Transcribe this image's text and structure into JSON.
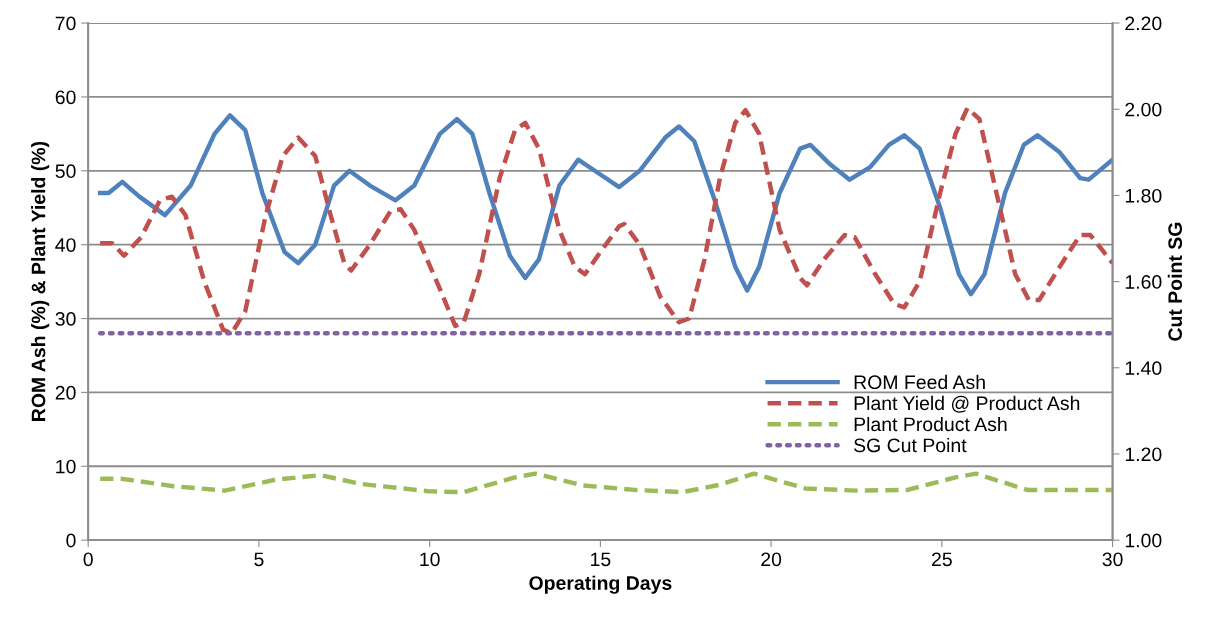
{
  "chart_data": {
    "type": "line",
    "xlabel": "Operating Days",
    "ylabel": "ROM Ash (%) & Plant Yield (%)",
    "y2label": "Cut Point SG",
    "xlim": [
      0,
      30
    ],
    "xticks": [
      0,
      5,
      10,
      15,
      20,
      25,
      30
    ],
    "ylim": [
      0,
      70
    ],
    "yticks": [
      0,
      10,
      20,
      30,
      40,
      50,
      60,
      70
    ],
    "y2lim": [
      1.0,
      2.2
    ],
    "y2ticks": [
      {
        "value": 1.0,
        "label": "1.00"
      },
      {
        "value": 1.2,
        "label": "1.20"
      },
      {
        "value": 1.4,
        "label": "1.40"
      },
      {
        "value": 1.6,
        "label": "1.60"
      },
      {
        "value": 1.8,
        "label": "1.80"
      },
      {
        "value": 2.0,
        "label": "2.00"
      },
      {
        "value": 2.2,
        "label": "2.20"
      }
    ],
    "grid": "y",
    "legend": "right",
    "marker": "none",
    "series": [
      {
        "name": "ROM Feed Ash",
        "color": "#4f81bd",
        "line_style": "solid",
        "x": [
          0.35,
          0.6,
          1.0,
          1.5,
          2.25,
          3.0,
          3.7,
          4.15,
          4.6,
          5.1,
          5.75,
          6.15,
          6.65,
          7.2,
          7.65,
          8.25,
          9.0,
          9.55,
          10.3,
          10.8,
          11.25,
          11.75,
          12.35,
          12.8,
          13.2,
          13.8,
          14.35,
          15.0,
          15.55,
          16.15,
          16.9,
          17.3,
          17.75,
          18.35,
          18.95,
          19.3,
          19.65,
          20.25,
          20.85,
          21.15,
          21.7,
          22.3,
          22.9,
          23.45,
          23.9,
          24.35,
          24.95,
          25.5,
          25.85,
          26.25,
          26.85,
          27.4,
          27.8,
          28.45,
          29.05,
          29.3,
          30.0
        ],
        "values": [
          47,
          47,
          48.5,
          46.5,
          44,
          48,
          55,
          57.5,
          55.5,
          47,
          39,
          37.5,
          40,
          48,
          50,
          48,
          46,
          48,
          55,
          57,
          55,
          47,
          38.5,
          35.5,
          38,
          48,
          51.5,
          49.5,
          47.8,
          50,
          54.5,
          56,
          54,
          46,
          37,
          33.8,
          37,
          47,
          53,
          53.5,
          51,
          48.8,
          50.5,
          53.5,
          54.8,
          53,
          45,
          36,
          33.3,
          36,
          47,
          53.5,
          54.8,
          52.5,
          49,
          48.8,
          51.5
        ]
      },
      {
        "name": "Plant Yield @ Product Ash",
        "color": "#c0504d",
        "line_style": "dashed",
        "x": [
          0.35,
          0.7,
          1.05,
          1.55,
          2.1,
          2.45,
          2.85,
          3.4,
          3.95,
          4.2,
          4.6,
          5.2,
          5.7,
          6.15,
          6.65,
          7.1,
          7.5,
          7.7,
          8.25,
          8.85,
          9.15,
          9.55,
          10.3,
          10.75,
          11.0,
          11.45,
          12.05,
          12.5,
          12.8,
          13.2,
          13.8,
          14.25,
          14.55,
          15.0,
          15.55,
          15.7,
          16.15,
          16.75,
          17.3,
          17.6,
          18.05,
          18.5,
          18.95,
          19.25,
          19.65,
          20.25,
          20.85,
          21.05,
          21.55,
          22.15,
          22.45,
          23.05,
          23.6,
          23.9,
          24.35,
          24.95,
          25.4,
          25.75,
          26.1,
          26.55,
          27.15,
          27.55,
          27.85,
          28.45,
          29.05,
          29.35,
          30.0
        ],
        "values": [
          40.2,
          40.2,
          38.5,
          41,
          46,
          46.5,
          44,
          35,
          28.5,
          28,
          31,
          44,
          52,
          54.5,
          52,
          44,
          37.5,
          36.5,
          40,
          44.5,
          44.8,
          42,
          34,
          29,
          29.5,
          36,
          49,
          55.5,
          56.5,
          53,
          42,
          37,
          36,
          39,
          42.5,
          42.8,
          40,
          33,
          29.5,
          30,
          38,
          49,
          56.5,
          58.2,
          55,
          42,
          35.5,
          34.5,
          38,
          41.3,
          41,
          36,
          32,
          31.5,
          35,
          47,
          55,
          58.5,
          57,
          48,
          36,
          32.5,
          32.5,
          37,
          41.3,
          41.3,
          37.5
        ]
      },
      {
        "name": "Plant Product Ash",
        "color": "#9bbb59",
        "line_style": "dashed",
        "x": [
          0.35,
          1.0,
          2.5,
          4.0,
          5.5,
          6.8,
          8.0,
          10.0,
          11.0,
          12.5,
          13.1,
          14.5,
          16.0,
          17.4,
          18.5,
          19.5,
          21.0,
          22.5,
          24.0,
          25.4,
          26.0,
          27.5,
          30.0
        ],
        "values": [
          8.3,
          8.3,
          7.3,
          6.7,
          8.2,
          8.8,
          7.6,
          6.6,
          6.5,
          8.5,
          9.0,
          7.4,
          6.8,
          6.5,
          7.5,
          9.0,
          7.0,
          6.7,
          6.8,
          8.5,
          9.0,
          6.8,
          6.8
        ]
      },
      {
        "name": "SG Cut Point",
        "color": "#8064a2",
        "line_style": "dotted",
        "axis": "y2",
        "x": [
          0.35,
          30.0
        ],
        "values": [
          1.48,
          1.48
        ]
      }
    ]
  }
}
